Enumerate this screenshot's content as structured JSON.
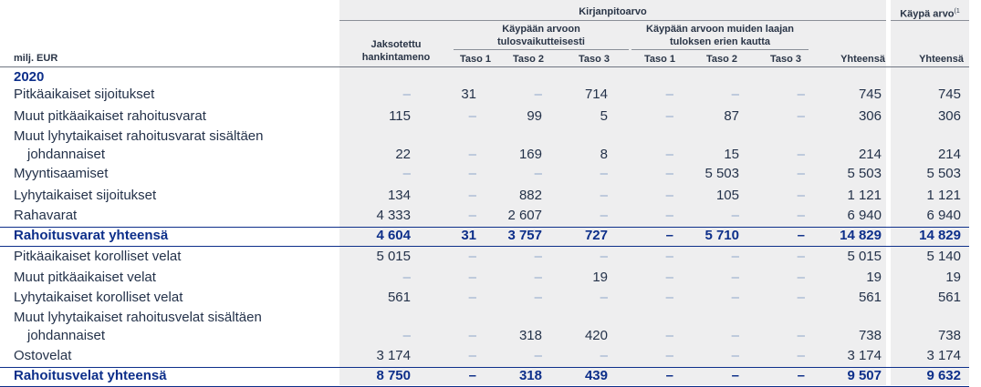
{
  "headers": {
    "kirjanpitoarvo": "Kirjanpitoarvo",
    "kaypa_arvo": "Käypä arvo",
    "kaypa_arvo_sup": "(1",
    "group_tulos_1": "Käypään arvoon",
    "group_tulos_2": "tulosvaikutteisesti",
    "group_muut_1": "Käypään arvoon muiden laajan",
    "group_muut_2": "tuloksen erien kautta",
    "jaksotettu_1": "Jaksotettu",
    "jaksotettu_2": "hankintameno",
    "unit": "milj. EUR",
    "taso1": "Taso 1",
    "taso2": "Taso 2",
    "taso3": "Taso 3",
    "taso1b": "Taso 1",
    "taso2b": "Taso 2",
    "taso3b": "Taso 3",
    "yhteensa": "Yhteensä",
    "yhteensa2": "Yhteensä"
  },
  "year": "2020",
  "rows": [
    {
      "label": "Pitkäaikaiset sijoitukset",
      "cells": [
        "–",
        "31",
        "–",
        "714",
        "–",
        "–",
        "–",
        "745",
        "745"
      ]
    },
    {
      "label": "Muut pitkäaikaiset rahoitusvarat",
      "cells": [
        "115",
        "–",
        "99",
        "5",
        "–",
        "87",
        "–",
        "306",
        "306"
      ]
    },
    {
      "label": "Muut lyhytaikaiset rahoitusvarat sisältäen",
      "label2": "johdannaiset",
      "cells": [
        "22",
        "–",
        "169",
        "8",
        "–",
        "15",
        "–",
        "214",
        "214"
      ]
    },
    {
      "label": "Myyntisaamiset",
      "cells": [
        "–",
        "–",
        "–",
        "–",
        "–",
        "5 503",
        "–",
        "5 503",
        "5 503"
      ]
    },
    {
      "label": "Lyhytaikaiset sijoitukset",
      "cells": [
        "134",
        "–",
        "882",
        "–",
        "–",
        "105",
        "–",
        "1 121",
        "1 121"
      ]
    },
    {
      "label": "Rahavarat",
      "cells": [
        "4 333",
        "–",
        "2 607",
        "–",
        "–",
        "–",
        "–",
        "6 940",
        "6 940"
      ]
    },
    {
      "label": "Rahoitusvarat yhteensä",
      "bold": true,
      "cells": [
        "4 604",
        "31",
        "3 757",
        "727",
        "–",
        "5 710",
        "–",
        "14 829",
        "14 829"
      ]
    },
    {
      "label": "Pitkäaikaiset korolliset velat",
      "cells": [
        "5 015",
        "–",
        "–",
        "–",
        "–",
        "–",
        "–",
        "5 015",
        "5 140"
      ]
    },
    {
      "label": "Muut pitkäaikaiset velat",
      "cells": [
        "–",
        "–",
        "–",
        "19",
        "–",
        "–",
        "–",
        "19",
        "19"
      ]
    },
    {
      "label": "Lyhytaikaiset korolliset velat",
      "cells": [
        "561",
        "–",
        "–",
        "–",
        "–",
        "–",
        "–",
        "561",
        "561"
      ]
    },
    {
      "label": "Muut lyhytaikaiset rahoitusvelat sisältäen",
      "label2": "johdannaiset",
      "cells": [
        "–",
        "–",
        "318",
        "420",
        "–",
        "–",
        "–",
        "738",
        "738"
      ]
    },
    {
      "label": "Ostovelat",
      "cells": [
        "3 174",
        "–",
        "–",
        "–",
        "–",
        "–",
        "–",
        "3 174",
        "3 174"
      ]
    },
    {
      "label": "Rahoitusvelat yhteensä",
      "bold": true,
      "cells": [
        "8 750",
        "–",
        "318",
        "439",
        "–",
        "–",
        "–",
        "9 507",
        "9 632"
      ]
    }
  ]
}
